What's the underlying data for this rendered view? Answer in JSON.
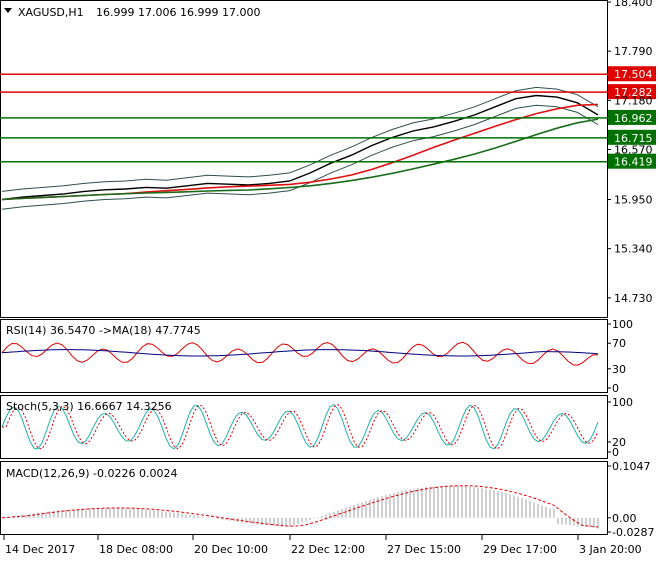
{
  "main": {
    "symbol_label": "XAGUSD,H1",
    "ohlc_label": "16.999 17.006 16.999 17.000",
    "price_ticks": [
      "18.400",
      "17.790",
      "17.180",
      "16.570",
      "15.950",
      "15.340",
      "14.730"
    ],
    "levels": [
      {
        "value": 17.504,
        "label": "17.504",
        "color": "#e00000"
      },
      {
        "value": 17.282,
        "label": "17.282",
        "color": "#e00000"
      },
      {
        "value": 16.962,
        "label": "16.962",
        "color": "#007000"
      },
      {
        "value": 16.715,
        "label": "16.715",
        "color": "#007000"
      },
      {
        "value": 16.419,
        "label": "16.419",
        "color": "#007000"
      }
    ]
  },
  "rsi": {
    "label": "RSI(14) 36.5470 ->MA(18) 47.7745",
    "ticks": [
      "100",
      "70",
      "30",
      "0"
    ]
  },
  "stoch": {
    "label": "Stoch(5,3,3) 16.6667 14.3256",
    "ticks": [
      "100",
      "20",
      "0"
    ]
  },
  "macd": {
    "label": "MACD(12,26,9) -0.0226 0.0024",
    "ticks": [
      "0.1047",
      "0.00",
      "-0.0287"
    ]
  },
  "time_axis": {
    "labels": [
      "14 Dec 2017",
      "18 Dec 08:00",
      "20 Dec 10:00",
      "22 Dec 12:00",
      "27 Dec 15:00",
      "29 Dec 17:00",
      "3 Jan 20:00"
    ]
  },
  "colors": {
    "up_level": "#e00000",
    "down_level": "#007000",
    "ma_slow": "#1a6b1a",
    "ma_fast": "#e01010",
    "bands": "#2f4f4f",
    "rsi_line": "#e00000",
    "rsi_ma": "#000080",
    "stoch_main": "#20b2aa",
    "stoch_signal": "#e00000",
    "macd_hist": "#c0c0c0",
    "macd_signal": "#e00000"
  },
  "chart_data": {
    "type": "line",
    "symbol": "XAGUSD",
    "timeframe": "H1",
    "close_approx": [
      15.95,
      15.98,
      16.0,
      16.02,
      16.05,
      16.07,
      16.08,
      16.1,
      16.09,
      16.12,
      16.15,
      16.14,
      16.13,
      16.15,
      16.18,
      16.28,
      16.4,
      16.5,
      16.62,
      16.72,
      16.8,
      16.85,
      16.92,
      17.0,
      17.1,
      17.2,
      17.24,
      17.22,
      17.15,
      17.0
    ],
    "ylim": [
      14.73,
      18.4
    ],
    "horizontal_levels": [
      17.504,
      17.282,
      16.962,
      16.715,
      16.419
    ],
    "x_labels": [
      "14 Dec 2017",
      "18 Dec 08:00",
      "20 Dec 10:00",
      "22 Dec 12:00",
      "27 Dec 15:00",
      "29 Dec 17:00",
      "3 Jan 20:00"
    ]
  }
}
